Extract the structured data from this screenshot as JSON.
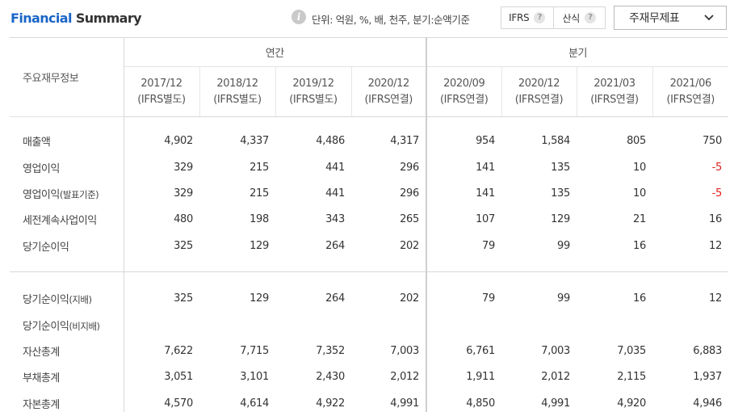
{
  "header": {
    "title_part1": "Financial",
    "title_part2": "Summary",
    "unit_text": "단위: 억원, %, 배, 천주, 분기:순액기준",
    "ifrs_label": "IFRS",
    "calc_label": "산식",
    "dropdown_selected": "주재무제표"
  },
  "table": {
    "label_header": "주요재무정보",
    "group_annual": "연간",
    "group_quarter": "분기",
    "periods": [
      {
        "date": "2017/12",
        "basis": "(IFRS별도)"
      },
      {
        "date": "2018/12",
        "basis": "(IFRS별도)"
      },
      {
        "date": "2019/12",
        "basis": "(IFRS별도)"
      },
      {
        "date": "2020/12",
        "basis": "(IFRS연결)"
      },
      {
        "date": "2020/09",
        "basis": "(IFRS연결)"
      },
      {
        "date": "2020/12",
        "basis": "(IFRS연결)"
      },
      {
        "date": "2021/03",
        "basis": "(IFRS연결)"
      },
      {
        "date": "2021/06",
        "basis": "(IFRS연결)"
      }
    ],
    "rows": [
      {
        "label": "매출액",
        "label_suffix": "",
        "values": [
          "4,902",
          "4,337",
          "4,486",
          "4,317",
          "954",
          "1,584",
          "805",
          "750"
        ]
      },
      {
        "label": "영업이익",
        "label_suffix": "",
        "values": [
          "329",
          "215",
          "441",
          "296",
          "141",
          "135",
          "10",
          "-5"
        ]
      },
      {
        "label": "영업이익",
        "label_suffix": "(발표기준)",
        "values": [
          "329",
          "215",
          "441",
          "296",
          "141",
          "135",
          "10",
          "-5"
        ]
      },
      {
        "label": "세전계속사업이익",
        "label_suffix": "",
        "values": [
          "480",
          "198",
          "343",
          "265",
          "107",
          "129",
          "21",
          "16"
        ]
      },
      {
        "label": "당기순이익",
        "label_suffix": "",
        "values": [
          "325",
          "129",
          "264",
          "202",
          "79",
          "99",
          "16",
          "12"
        ]
      },
      {
        "label": "당기순이익",
        "label_suffix": "(지배)",
        "values": [
          "325",
          "129",
          "264",
          "202",
          "79",
          "99",
          "16",
          "12"
        ]
      },
      {
        "label": "당기순이익",
        "label_suffix": "(비지배)",
        "values": [
          "",
          "",
          "",
          "",
          "",
          "",
          "",
          ""
        ]
      },
      {
        "label": "자산총계",
        "label_suffix": "",
        "values": [
          "7,622",
          "7,715",
          "7,352",
          "7,003",
          "6,761",
          "7,003",
          "7,035",
          "6,883"
        ]
      },
      {
        "label": "부채총계",
        "label_suffix": "",
        "values": [
          "3,051",
          "3,101",
          "2,430",
          "2,012",
          "1,911",
          "2,012",
          "2,115",
          "1,937"
        ]
      },
      {
        "label": "자본총계",
        "label_suffix": "",
        "values": [
          "4,570",
          "4,614",
          "4,922",
          "4,991",
          "4,850",
          "4,991",
          "4,920",
          "4,946"
        ]
      }
    ]
  },
  "icons": {
    "info": "info-icon",
    "help": "question-icon",
    "dropdown": "chevron-down-icon"
  },
  "colors": {
    "title_accent": "#1a66c8",
    "negative": "#e02020"
  }
}
